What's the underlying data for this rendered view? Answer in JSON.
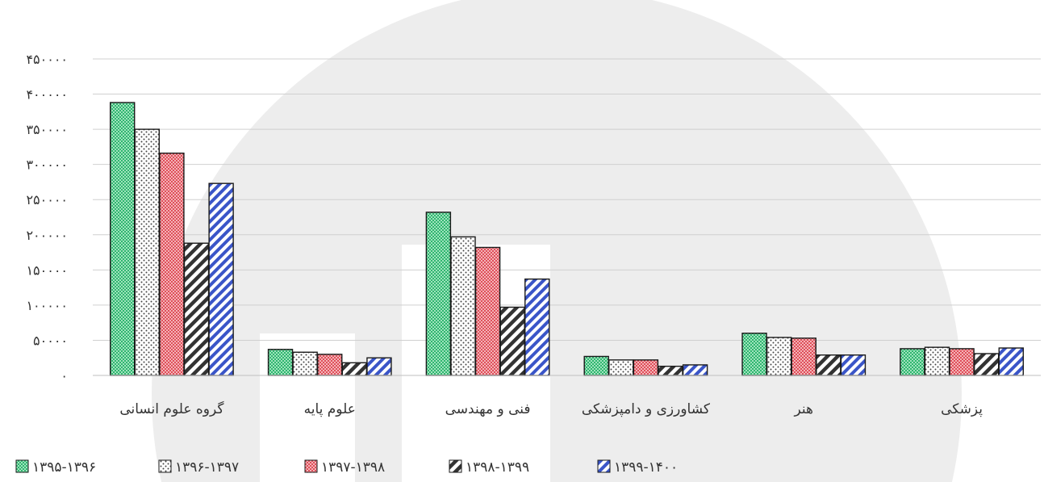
{
  "chart_data": {
    "type": "bar",
    "title": "",
    "xlabel": "",
    "ylabel": "",
    "ylim": [
      0,
      450000
    ],
    "y_ticks": [
      {
        "value": 0,
        "label": "۰"
      },
      {
        "value": 50000,
        "label": "۵۰۰۰۰"
      },
      {
        "value": 100000,
        "label": "۱۰۰۰۰۰"
      },
      {
        "value": 150000,
        "label": "۱۵۰۰۰۰"
      },
      {
        "value": 200000,
        "label": "۲۰۰۰۰۰"
      },
      {
        "value": 250000,
        "label": "۲۵۰۰۰۰"
      },
      {
        "value": 300000,
        "label": "۳۰۰۰۰۰"
      },
      {
        "value": 350000,
        "label": "۳۵۰۰۰۰"
      },
      {
        "value": 400000,
        "label": "۴۰۰۰۰۰"
      },
      {
        "value": 450000,
        "label": "۴۵۰۰۰۰"
      }
    ],
    "grid": true,
    "legend_position": "bottom",
    "categories": [
      "گروه علوم انسانی",
      "علوم پایه",
      "فنی و مهندسی",
      "کشاورزی و دامپزشکی",
      "هنر",
      "پزشکی"
    ],
    "series": [
      {
        "name": "۱۳۹۵-۱۳۹۶",
        "pattern": "checker",
        "color": "#3cc47c",
        "values": [
          388000,
          37000,
          232000,
          27000,
          60000,
          38000
        ]
      },
      {
        "name": "۱۳۹۶-۱۳۹۷",
        "pattern": "dots",
        "color": "#555555",
        "values": [
          350000,
          33000,
          197000,
          22000,
          54000,
          40000
        ]
      },
      {
        "name": "۱۳۹۷-۱۳۹۸",
        "pattern": "checker",
        "color": "#e0606a",
        "values": [
          316000,
          30000,
          182000,
          22000,
          53000,
          38000
        ]
      },
      {
        "name": "۱۳۹۸-۱۳۹۹",
        "pattern": "stripes",
        "color": "#3a3a3a",
        "values": [
          188000,
          18000,
          97000,
          13000,
          29000,
          31000
        ]
      },
      {
        "name": "۱۳۹۹-۱۴۰۰",
        "pattern": "stripes",
        "color": "#3a55c8",
        "values": [
          273000,
          25000,
          137000,
          15000,
          29000,
          39000
        ]
      }
    ]
  }
}
